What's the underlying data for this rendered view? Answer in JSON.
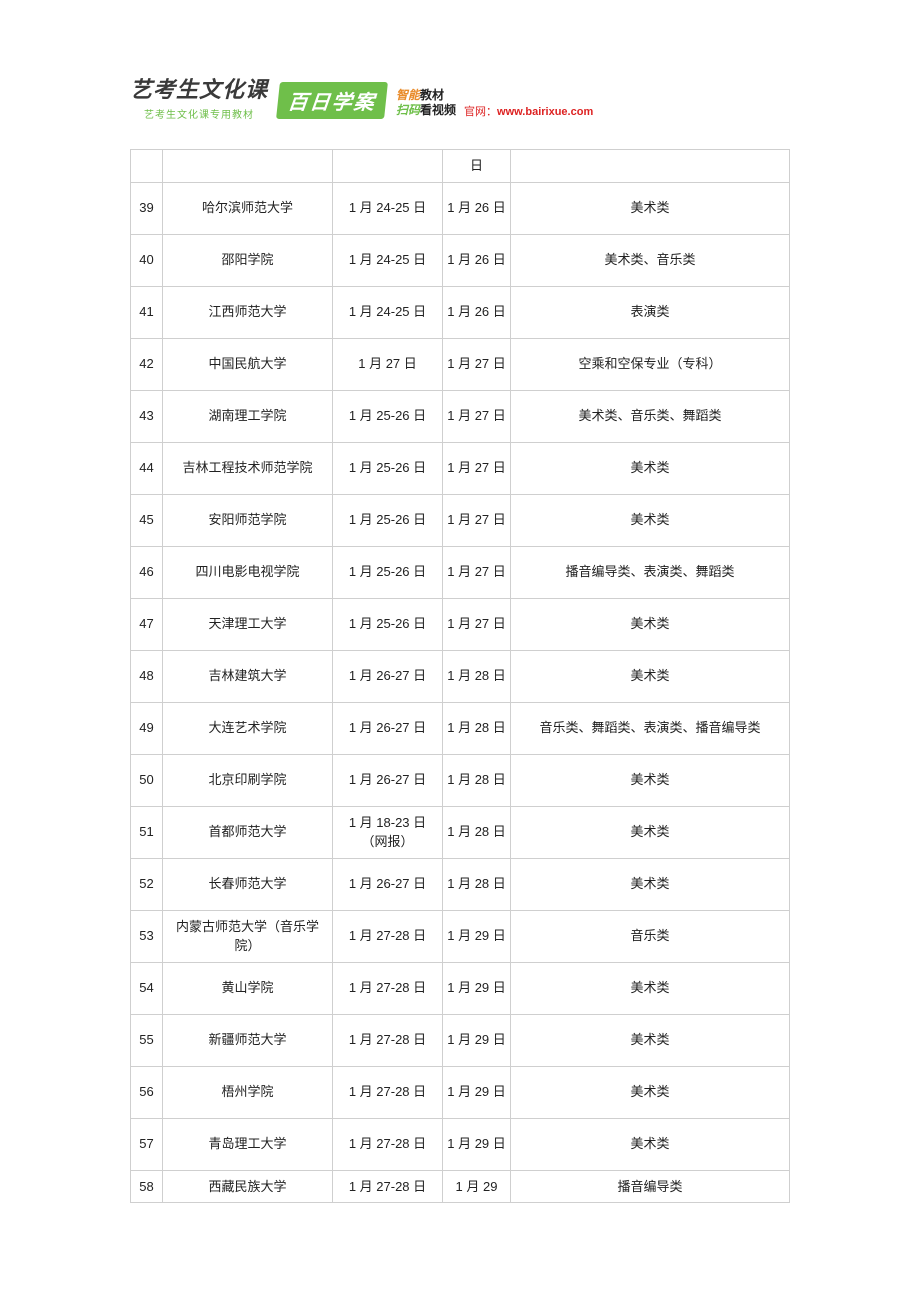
{
  "header": {
    "title_main": "艺考生文化课",
    "title_sub": "艺考生文化课专用教材",
    "badge": "百日学案",
    "feature_top_orange": "智能",
    "feature_top_black": "教材",
    "feature_bottom_green": "扫码",
    "feature_bottom_black": "看视频",
    "site_label": "官网：",
    "site_url": "www.bairixue.com"
  },
  "table": {
    "rows": [
      {
        "idx": "",
        "school": "",
        "date1": "",
        "date2": "日",
        "cat": ""
      },
      {
        "idx": "39",
        "school": "哈尔滨师范大学",
        "date1": "1 月 24-25 日",
        "date2": "1 月 26 日",
        "cat": "美术类"
      },
      {
        "idx": "40",
        "school": "邵阳学院",
        "date1": "1 月 24-25 日",
        "date2": "1 月 26 日",
        "cat": "美术类、音乐类"
      },
      {
        "idx": "41",
        "school": "江西师范大学",
        "date1": "1 月 24-25 日",
        "date2": "1 月 26 日",
        "cat": "表演类"
      },
      {
        "idx": "42",
        "school": "中国民航大学",
        "date1": "1 月 27 日",
        "date2": "1 月 27 日",
        "cat": "空乘和空保专业（专科）"
      },
      {
        "idx": "43",
        "school": "湖南理工学院",
        "date1": "1 月 25-26 日",
        "date2": "1 月 27 日",
        "cat": "美术类、音乐类、舞蹈类"
      },
      {
        "idx": "44",
        "school": "吉林工程技术师范学院",
        "date1": "1 月 25-26 日",
        "date2": "1 月 27 日",
        "cat": "美术类"
      },
      {
        "idx": "45",
        "school": "安阳师范学院",
        "date1": "1 月 25-26 日",
        "date2": "1 月 27 日",
        "cat": "美术类"
      },
      {
        "idx": "46",
        "school": "四川电影电视学院",
        "date1": "1 月 25-26 日",
        "date2": "1 月 27 日",
        "cat": "播音编导类、表演类、舞蹈类"
      },
      {
        "idx": "47",
        "school": "天津理工大学",
        "date1": "1 月 25-26 日",
        "date2": "1 月 27 日",
        "cat": "美术类"
      },
      {
        "idx": "48",
        "school": "吉林建筑大学",
        "date1": "1 月 26-27 日",
        "date2": "1 月 28 日",
        "cat": "美术类"
      },
      {
        "idx": "49",
        "school": "大连艺术学院",
        "date1": "1 月 26-27 日",
        "date2": "1 月 28 日",
        "cat": "音乐类、舞蹈类、表演类、播音编导类"
      },
      {
        "idx": "50",
        "school": "北京印刷学院",
        "date1": "1 月 26-27 日",
        "date2": "1 月 28 日",
        "cat": "美术类"
      },
      {
        "idx": "51",
        "school": "首都师范大学",
        "date1": "1 月 18-23 日（网报）",
        "date2": "1 月 28 日",
        "cat": "美术类"
      },
      {
        "idx": "52",
        "school": "长春师范大学",
        "date1": "1 月 26-27 日",
        "date2": "1 月 28 日",
        "cat": "美术类"
      },
      {
        "idx": "53",
        "school": "内蒙古师范大学（音乐学院）",
        "date1": "1 月 27-28 日",
        "date2": "1 月 29 日",
        "cat": "音乐类"
      },
      {
        "idx": "54",
        "school": "黄山学院",
        "date1": "1 月 27-28 日",
        "date2": "1 月 29 日",
        "cat": "美术类"
      },
      {
        "idx": "55",
        "school": "新疆师范大学",
        "date1": "1 月 27-28 日",
        "date2": "1 月 29 日",
        "cat": "美术类"
      },
      {
        "idx": "56",
        "school": "梧州学院",
        "date1": "1 月 27-28 日",
        "date2": "1 月 29 日",
        "cat": "美术类"
      },
      {
        "idx": "57",
        "school": "青岛理工大学",
        "date1": "1 月 27-28 日",
        "date2": "1 月 29 日",
        "cat": "美术类"
      },
      {
        "idx": "58",
        "school": "西藏民族大学",
        "date1": "1 月 27-28 日",
        "date2": "1 月 29",
        "cat": "播音编导类"
      }
    ]
  }
}
